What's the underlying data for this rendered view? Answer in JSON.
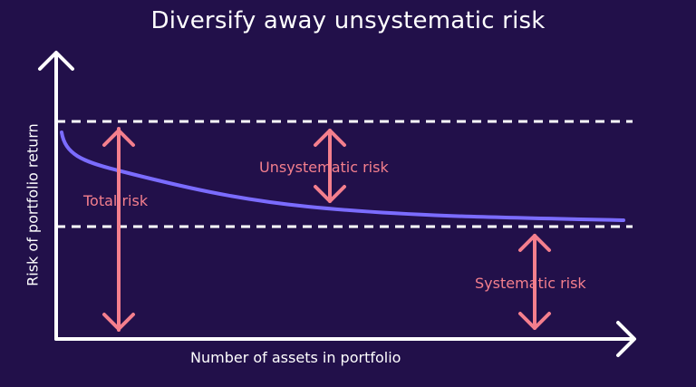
{
  "title": "Diversify away unsystematic risk",
  "labels": {
    "total_risk": "Total risk",
    "unsystematic_risk": "Unsystematic risk",
    "systematic_risk": "Systematic risk"
  },
  "axes": {
    "x_label": "Number of assets in portfolio",
    "y_label": "Risk of portfolio return"
  },
  "colors": {
    "background": "#22104a",
    "axis": "#ffffff",
    "curve": "#7b6cff",
    "arrows": "#f47f8d",
    "dashed_lines": "#ffffff"
  }
}
